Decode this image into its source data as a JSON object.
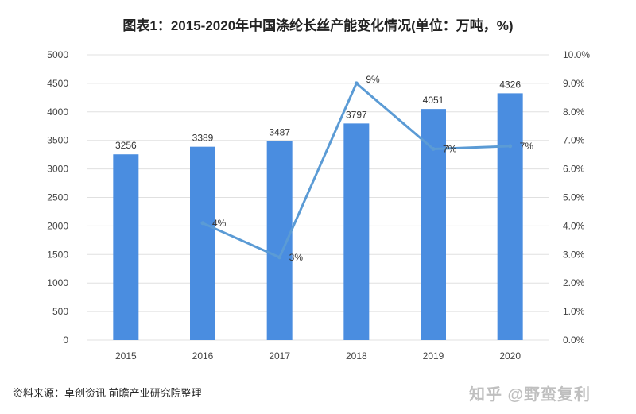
{
  "title": "图表1：2015-2020年中国涤纶长丝产能变化情况(单位：万吨，%)",
  "source": "资料来源：卓创资讯 前瞻产业研究院整理",
  "watermark": "知乎 @野蛮复利",
  "colors": {
    "bar": "#4a8de0",
    "line": "#5b9bd5",
    "grid": "#e0e0e0"
  },
  "chart_data": {
    "type": "bar",
    "categories": [
      "2015",
      "2016",
      "2017",
      "2018",
      "2019",
      "2020"
    ],
    "series": [
      {
        "values": [
          3256,
          3389,
          3487,
          3797,
          4051,
          4326
        ],
        "axis": "left",
        "chart_type": "bar",
        "labels": [
          "3256",
          "3389",
          "3487",
          "3797",
          "4051",
          "4326"
        ]
      },
      {
        "values": [
          null,
          4.1,
          2.9,
          9.0,
          6.7,
          6.8
        ],
        "axis": "right",
        "chart_type": "line",
        "labels": [
          "",
          "4%",
          "3%",
          "9%",
          "7%",
          "7%"
        ]
      }
    ],
    "ylim": [
      0,
      5000
    ],
    "y2lim": [
      0,
      10
    ],
    "yticks": [
      "0",
      "500",
      "1000",
      "1500",
      "2000",
      "2500",
      "3000",
      "3500",
      "4000",
      "4500",
      "5000"
    ],
    "y2ticks": [
      "0.0%",
      "1.0%",
      "2.0%",
      "3.0%",
      "4.0%",
      "5.0%",
      "6.0%",
      "7.0%",
      "8.0%",
      "9.0%",
      "10.0%"
    ],
    "grid": true,
    "legend": "none"
  }
}
